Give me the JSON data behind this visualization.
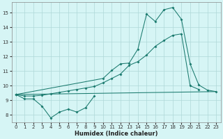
{
  "title": "",
  "xlabel": "Humidex (Indice chaleur)",
  "bg_color": "#d6f5f5",
  "line_color": "#1a7a6e",
  "grid_color": "#aed8d8",
  "xlim": [
    -0.5,
    23.5
  ],
  "ylim": [
    7.5,
    15.7
  ],
  "yticks": [
    8,
    9,
    10,
    11,
    12,
    13,
    14,
    15
  ],
  "xticks": [
    0,
    1,
    2,
    3,
    4,
    5,
    6,
    7,
    8,
    9,
    10,
    11,
    12,
    13,
    14,
    15,
    16,
    17,
    18,
    19,
    20,
    21,
    22,
    23
  ],
  "xtick_labels": [
    "0",
    "1",
    "2",
    "3",
    "4",
    "5",
    "6",
    "7",
    "8",
    "9",
    "10",
    "11",
    "12",
    "13",
    "14",
    "15",
    "16",
    "17",
    "18",
    "19",
    "20",
    "21",
    "22",
    "23"
  ],
  "s1_x": [
    0,
    1,
    2,
    3,
    4,
    5,
    6,
    7,
    8,
    9
  ],
  "s1_y": [
    9.4,
    9.1,
    9.1,
    8.6,
    7.8,
    8.2,
    8.4,
    8.2,
    8.5,
    9.3
  ],
  "s2_x": [
    0,
    1,
    2,
    3,
    4,
    5,
    6,
    7,
    8,
    9,
    10,
    11,
    12,
    13,
    14,
    15,
    16,
    17,
    18,
    19,
    20,
    21
  ],
  "s2_y": [
    9.4,
    9.3,
    9.3,
    9.35,
    9.45,
    9.55,
    9.65,
    9.75,
    9.85,
    9.95,
    10.2,
    10.5,
    10.8,
    11.4,
    11.65,
    12.1,
    12.7,
    13.1,
    13.45,
    13.55,
    10.0,
    9.75
  ],
  "s3_x": [
    0,
    10,
    11,
    12,
    13,
    14,
    15,
    16,
    17,
    18,
    19,
    20,
    21,
    22,
    23
  ],
  "s3_y": [
    9.4,
    10.5,
    11.05,
    11.5,
    11.55,
    12.5,
    14.9,
    14.4,
    15.2,
    15.35,
    14.55,
    11.5,
    10.05,
    9.7,
    9.6
  ],
  "trend_x": [
    0,
    23
  ],
  "trend_y": [
    9.4,
    9.6
  ]
}
